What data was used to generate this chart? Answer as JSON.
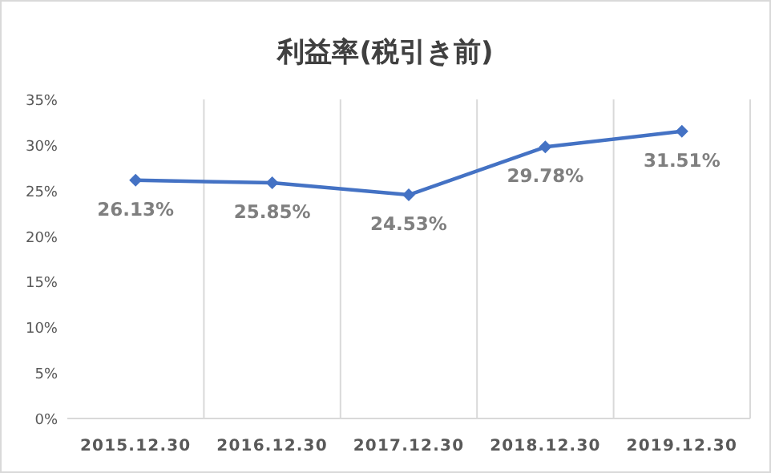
{
  "chart_data": {
    "type": "line",
    "title": "利益率(税引き前)",
    "categories": [
      "2015.12.30",
      "2016.12.30",
      "2017.12.30",
      "2018.12.30",
      "2019.12.30"
    ],
    "series": [
      {
        "color": "#4472c4",
        "values": [
          26.13,
          25.85,
          24.53,
          29.78,
          31.51
        ],
        "value_labels": [
          "26.13%",
          "25.85%",
          "24.53%",
          "29.78%",
          "31.51%"
        ]
      }
    ],
    "ylim": [
      0,
      35
    ],
    "yticks": [
      {
        "value": 0,
        "label": "0%"
      },
      {
        "value": 5,
        "label": "5%"
      },
      {
        "value": 10,
        "label": "10%"
      },
      {
        "value": 15,
        "label": "15%"
      },
      {
        "value": 20,
        "label": "20%"
      },
      {
        "value": 25,
        "label": "25%"
      },
      {
        "value": 30,
        "label": "30%"
      },
      {
        "value": 35,
        "label": "35%"
      }
    ],
    "grid": "x",
    "marker": "diamond",
    "line_style": "solid"
  }
}
